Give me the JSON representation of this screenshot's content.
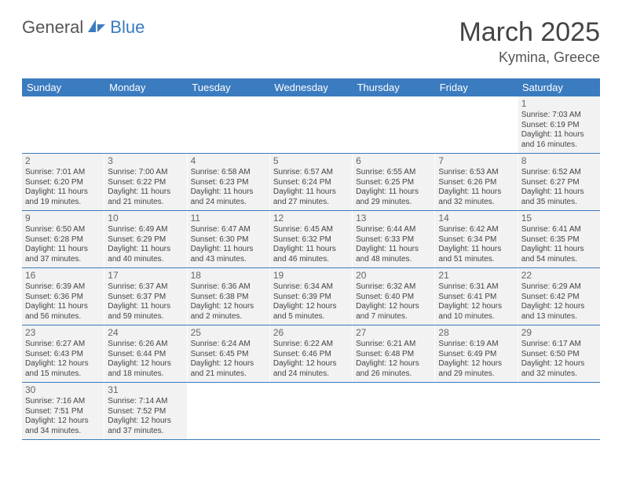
{
  "logo": {
    "left": "General",
    "right": "Blue"
  },
  "title": "March 2025",
  "location": "Kymina, Greece",
  "colors": {
    "header_bg": "#3b7bbf",
    "header_text": "#ffffff",
    "cell_bg": "#f2f2f2",
    "cell_empty_bg": "#ffffff",
    "border": "#3b7bbf",
    "text": "#444444",
    "daynum": "#666666"
  },
  "day_headers": [
    "Sunday",
    "Monday",
    "Tuesday",
    "Wednesday",
    "Thursday",
    "Friday",
    "Saturday"
  ],
  "weeks": [
    [
      null,
      null,
      null,
      null,
      null,
      null,
      {
        "num": "1",
        "sunrise": "Sunrise: 7:03 AM",
        "sunset": "Sunset: 6:19 PM",
        "daylight1": "Daylight: 11 hours",
        "daylight2": "and 16 minutes."
      }
    ],
    [
      {
        "num": "2",
        "sunrise": "Sunrise: 7:01 AM",
        "sunset": "Sunset: 6:20 PM",
        "daylight1": "Daylight: 11 hours",
        "daylight2": "and 19 minutes."
      },
      {
        "num": "3",
        "sunrise": "Sunrise: 7:00 AM",
        "sunset": "Sunset: 6:22 PM",
        "daylight1": "Daylight: 11 hours",
        "daylight2": "and 21 minutes."
      },
      {
        "num": "4",
        "sunrise": "Sunrise: 6:58 AM",
        "sunset": "Sunset: 6:23 PM",
        "daylight1": "Daylight: 11 hours",
        "daylight2": "and 24 minutes."
      },
      {
        "num": "5",
        "sunrise": "Sunrise: 6:57 AM",
        "sunset": "Sunset: 6:24 PM",
        "daylight1": "Daylight: 11 hours",
        "daylight2": "and 27 minutes."
      },
      {
        "num": "6",
        "sunrise": "Sunrise: 6:55 AM",
        "sunset": "Sunset: 6:25 PM",
        "daylight1": "Daylight: 11 hours",
        "daylight2": "and 29 minutes."
      },
      {
        "num": "7",
        "sunrise": "Sunrise: 6:53 AM",
        "sunset": "Sunset: 6:26 PM",
        "daylight1": "Daylight: 11 hours",
        "daylight2": "and 32 minutes."
      },
      {
        "num": "8",
        "sunrise": "Sunrise: 6:52 AM",
        "sunset": "Sunset: 6:27 PM",
        "daylight1": "Daylight: 11 hours",
        "daylight2": "and 35 minutes."
      }
    ],
    [
      {
        "num": "9",
        "sunrise": "Sunrise: 6:50 AM",
        "sunset": "Sunset: 6:28 PM",
        "daylight1": "Daylight: 11 hours",
        "daylight2": "and 37 minutes."
      },
      {
        "num": "10",
        "sunrise": "Sunrise: 6:49 AM",
        "sunset": "Sunset: 6:29 PM",
        "daylight1": "Daylight: 11 hours",
        "daylight2": "and 40 minutes."
      },
      {
        "num": "11",
        "sunrise": "Sunrise: 6:47 AM",
        "sunset": "Sunset: 6:30 PM",
        "daylight1": "Daylight: 11 hours",
        "daylight2": "and 43 minutes."
      },
      {
        "num": "12",
        "sunrise": "Sunrise: 6:45 AM",
        "sunset": "Sunset: 6:32 PM",
        "daylight1": "Daylight: 11 hours",
        "daylight2": "and 46 minutes."
      },
      {
        "num": "13",
        "sunrise": "Sunrise: 6:44 AM",
        "sunset": "Sunset: 6:33 PM",
        "daylight1": "Daylight: 11 hours",
        "daylight2": "and 48 minutes."
      },
      {
        "num": "14",
        "sunrise": "Sunrise: 6:42 AM",
        "sunset": "Sunset: 6:34 PM",
        "daylight1": "Daylight: 11 hours",
        "daylight2": "and 51 minutes."
      },
      {
        "num": "15",
        "sunrise": "Sunrise: 6:41 AM",
        "sunset": "Sunset: 6:35 PM",
        "daylight1": "Daylight: 11 hours",
        "daylight2": "and 54 minutes."
      }
    ],
    [
      {
        "num": "16",
        "sunrise": "Sunrise: 6:39 AM",
        "sunset": "Sunset: 6:36 PM",
        "daylight1": "Daylight: 11 hours",
        "daylight2": "and 56 minutes."
      },
      {
        "num": "17",
        "sunrise": "Sunrise: 6:37 AM",
        "sunset": "Sunset: 6:37 PM",
        "daylight1": "Daylight: 11 hours",
        "daylight2": "and 59 minutes."
      },
      {
        "num": "18",
        "sunrise": "Sunrise: 6:36 AM",
        "sunset": "Sunset: 6:38 PM",
        "daylight1": "Daylight: 12 hours",
        "daylight2": "and 2 minutes."
      },
      {
        "num": "19",
        "sunrise": "Sunrise: 6:34 AM",
        "sunset": "Sunset: 6:39 PM",
        "daylight1": "Daylight: 12 hours",
        "daylight2": "and 5 minutes."
      },
      {
        "num": "20",
        "sunrise": "Sunrise: 6:32 AM",
        "sunset": "Sunset: 6:40 PM",
        "daylight1": "Daylight: 12 hours",
        "daylight2": "and 7 minutes."
      },
      {
        "num": "21",
        "sunrise": "Sunrise: 6:31 AM",
        "sunset": "Sunset: 6:41 PM",
        "daylight1": "Daylight: 12 hours",
        "daylight2": "and 10 minutes."
      },
      {
        "num": "22",
        "sunrise": "Sunrise: 6:29 AM",
        "sunset": "Sunset: 6:42 PM",
        "daylight1": "Daylight: 12 hours",
        "daylight2": "and 13 minutes."
      }
    ],
    [
      {
        "num": "23",
        "sunrise": "Sunrise: 6:27 AM",
        "sunset": "Sunset: 6:43 PM",
        "daylight1": "Daylight: 12 hours",
        "daylight2": "and 15 minutes."
      },
      {
        "num": "24",
        "sunrise": "Sunrise: 6:26 AM",
        "sunset": "Sunset: 6:44 PM",
        "daylight1": "Daylight: 12 hours",
        "daylight2": "and 18 minutes."
      },
      {
        "num": "25",
        "sunrise": "Sunrise: 6:24 AM",
        "sunset": "Sunset: 6:45 PM",
        "daylight1": "Daylight: 12 hours",
        "daylight2": "and 21 minutes."
      },
      {
        "num": "26",
        "sunrise": "Sunrise: 6:22 AM",
        "sunset": "Sunset: 6:46 PM",
        "daylight1": "Daylight: 12 hours",
        "daylight2": "and 24 minutes."
      },
      {
        "num": "27",
        "sunrise": "Sunrise: 6:21 AM",
        "sunset": "Sunset: 6:48 PM",
        "daylight1": "Daylight: 12 hours",
        "daylight2": "and 26 minutes."
      },
      {
        "num": "28",
        "sunrise": "Sunrise: 6:19 AM",
        "sunset": "Sunset: 6:49 PM",
        "daylight1": "Daylight: 12 hours",
        "daylight2": "and 29 minutes."
      },
      {
        "num": "29",
        "sunrise": "Sunrise: 6:17 AM",
        "sunset": "Sunset: 6:50 PM",
        "daylight1": "Daylight: 12 hours",
        "daylight2": "and 32 minutes."
      }
    ],
    [
      {
        "num": "30",
        "sunrise": "Sunrise: 7:16 AM",
        "sunset": "Sunset: 7:51 PM",
        "daylight1": "Daylight: 12 hours",
        "daylight2": "and 34 minutes."
      },
      {
        "num": "31",
        "sunrise": "Sunrise: 7:14 AM",
        "sunset": "Sunset: 7:52 PM",
        "daylight1": "Daylight: 12 hours",
        "daylight2": "and 37 minutes."
      },
      null,
      null,
      null,
      null,
      null
    ]
  ]
}
